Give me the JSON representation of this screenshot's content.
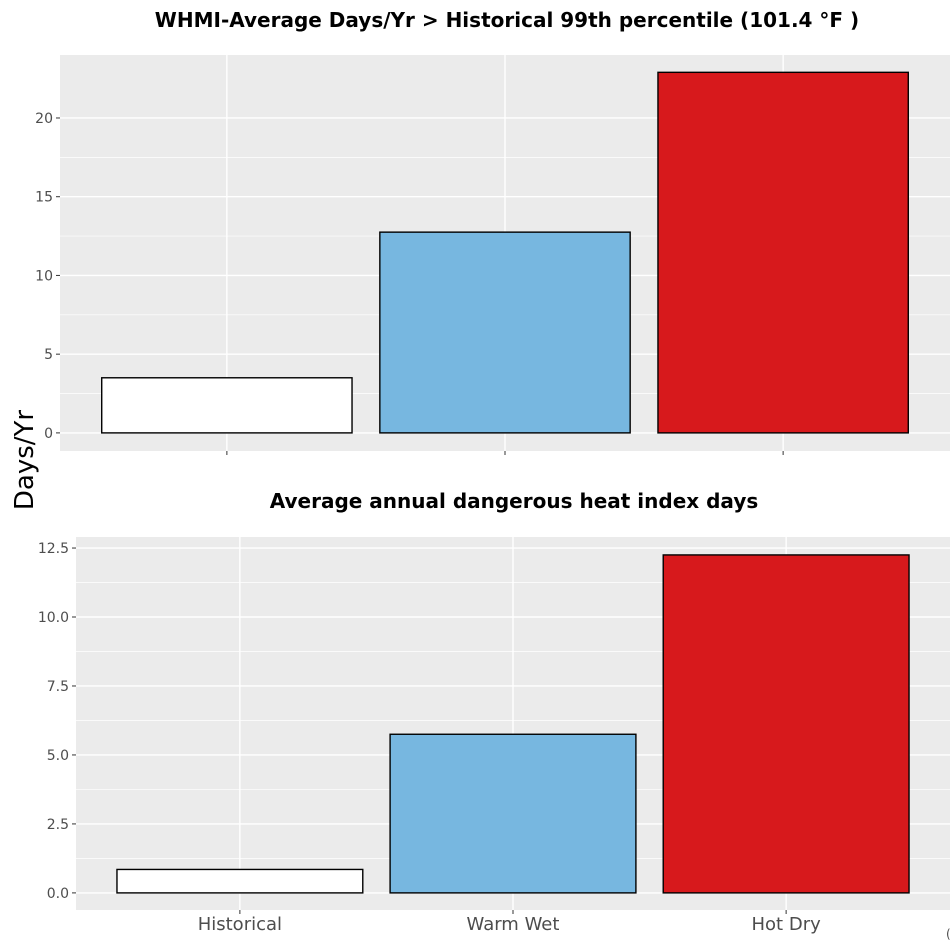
{
  "y_axis_label": "Days/Yr",
  "caption": "(",
  "chart_data": [
    {
      "type": "bar",
      "title": "WHMI-Average Days/Yr > Historical 99th percentile (101.4 °F )",
      "categories": [
        "Historical",
        "Warm Wet",
        "Hot Dry"
      ],
      "values": [
        3.5,
        12.75,
        22.9
      ],
      "colors": [
        "#ffffff",
        "#77b7e0",
        "#d7191c"
      ],
      "ylim": [
        -1.15,
        24.0
      ],
      "yticks": [
        0,
        5,
        10,
        15,
        20
      ],
      "ytick_labels": [
        "0",
        "5",
        "10",
        "15",
        "20"
      ],
      "show_x_tick_labels": false,
      "grid": true
    },
    {
      "type": "bar",
      "title": "Average annual dangerous heat index days",
      "categories": [
        "Historical",
        "Warm Wet",
        "Hot Dry"
      ],
      "values": [
        0.85,
        5.75,
        12.25
      ],
      "colors": [
        "#ffffff",
        "#77b7e0",
        "#d7191c"
      ],
      "ylim": [
        -0.62,
        12.9
      ],
      "yticks": [
        0.0,
        2.5,
        5.0,
        7.5,
        10.0,
        12.5
      ],
      "ytick_labels": [
        "0.0",
        "2.5",
        "5.0",
        "7.5",
        "10.0",
        "12.5"
      ],
      "show_x_tick_labels": true,
      "grid": true
    }
  ]
}
